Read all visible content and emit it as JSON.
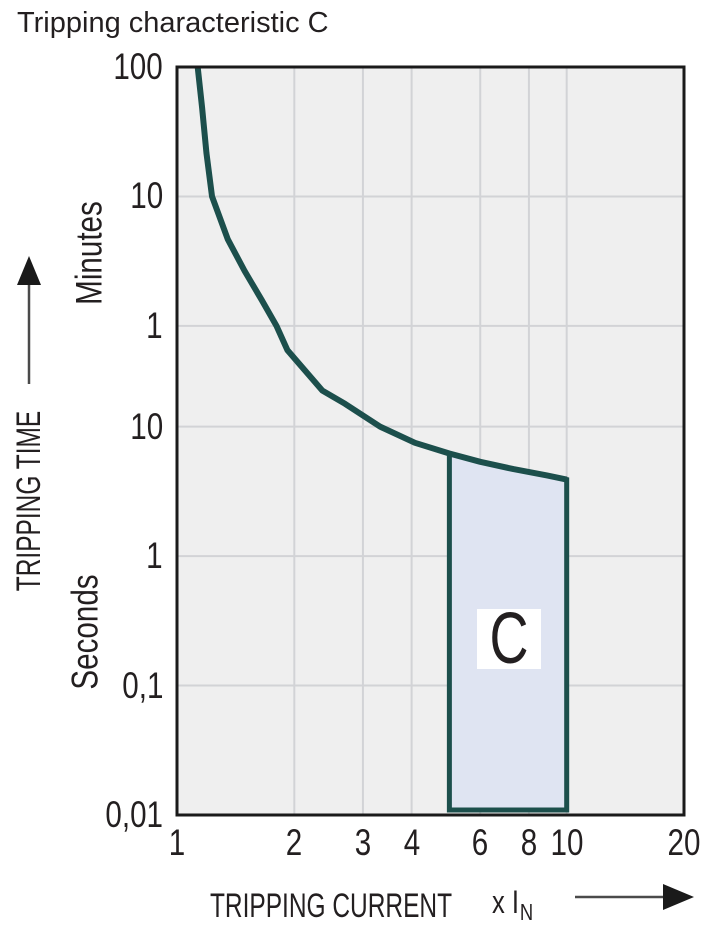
{
  "title": "Tripping characteristic C",
  "labels": {
    "y_axis_title": "TRIPPING TIME",
    "y_unit_upper": "Minutes",
    "y_unit_lower": "Seconds",
    "x_axis_title": "TRIPPING CURRENT",
    "x_multiplier": "x I",
    "x_multiplier_subscript": "N",
    "region_label": "C"
  },
  "colors": {
    "text": "#231f20",
    "plot_bg": "#efefef",
    "gridline": "#d2d3d6",
    "frame": "#1a1a1a",
    "curve": "#1c4f4c",
    "region_fill": "#dfe4f2",
    "region_border": "#1c4f4c",
    "arrow_line": "#4a4a4a",
    "arrow_head": "#1a1a1a"
  },
  "chart_data": {
    "type": "line",
    "title": "Tripping characteristic C",
    "xlabel": "TRIPPING CURRENT (x IN)",
    "ylabel": "TRIPPING TIME (Minutes / Seconds)",
    "x_scale": "log",
    "y_scale": "log",
    "x_domain": [
      1,
      20
    ],
    "y_domain_seconds": [
      0.01,
      6000
    ],
    "grid": true,
    "x_ticks": [
      {
        "value": 1,
        "label": "1"
      },
      {
        "value": 2,
        "label": "2"
      },
      {
        "value": 3,
        "label": "3"
      },
      {
        "value": 4,
        "label": "4"
      },
      {
        "value": 6,
        "label": "6"
      },
      {
        "value": 8,
        "label": "8"
      },
      {
        "value": 10,
        "label": "10"
      },
      {
        "value": 20,
        "label": "20"
      }
    ],
    "y_ticks": [
      {
        "seconds": 6000,
        "label": "100",
        "unit": "minutes"
      },
      {
        "seconds": 600,
        "label": "10",
        "unit": "minutes"
      },
      {
        "seconds": 60,
        "label": "1",
        "unit": "minutes"
      },
      {
        "seconds": 10,
        "label": "10",
        "unit": "seconds"
      },
      {
        "seconds": 1,
        "label": "1",
        "unit": "seconds"
      },
      {
        "seconds": 0.1,
        "label": "0,1",
        "unit": "seconds"
      },
      {
        "seconds": 0.01,
        "label": "0,01",
        "unit": "seconds"
      }
    ],
    "x_gridlines": [
      2,
      3,
      4,
      6,
      8,
      10
    ],
    "y_gridlines_seconds": [
      600,
      60,
      10,
      1,
      0.1
    ],
    "series": [
      {
        "name": "C-characteristic thermal tripping curve",
        "points_x_in_vs_t_seconds": [
          [
            1.12,
            7500
          ],
          [
            1.13,
            6000
          ],
          [
            1.16,
            2900
          ],
          [
            1.19,
            1300
          ],
          [
            1.23,
            600
          ],
          [
            1.35,
            280
          ],
          [
            1.49,
            160
          ],
          [
            1.65,
            95
          ],
          [
            1.8,
            60
          ],
          [
            1.92,
            39
          ],
          [
            2.07,
            30
          ],
          [
            2.36,
            19
          ],
          [
            2.7,
            15
          ],
          [
            3.32,
            10
          ],
          [
            4.08,
            7.5
          ],
          [
            5.0,
            6.2
          ],
          [
            6.0,
            5.35
          ],
          [
            7.3,
            4.7
          ],
          [
            8.9,
            4.2
          ],
          [
            10.0,
            3.9
          ]
        ]
      }
    ],
    "region": {
      "label": "C",
      "x_range_x_in": [
        5,
        10
      ],
      "t_bottom_seconds": 0.01,
      "top_boundary_points": [
        [
          5.0,
          6.2
        ],
        [
          6.0,
          5.35
        ],
        [
          7.3,
          4.7
        ],
        [
          8.9,
          4.2
        ],
        [
          10.0,
          3.9
        ]
      ]
    }
  }
}
